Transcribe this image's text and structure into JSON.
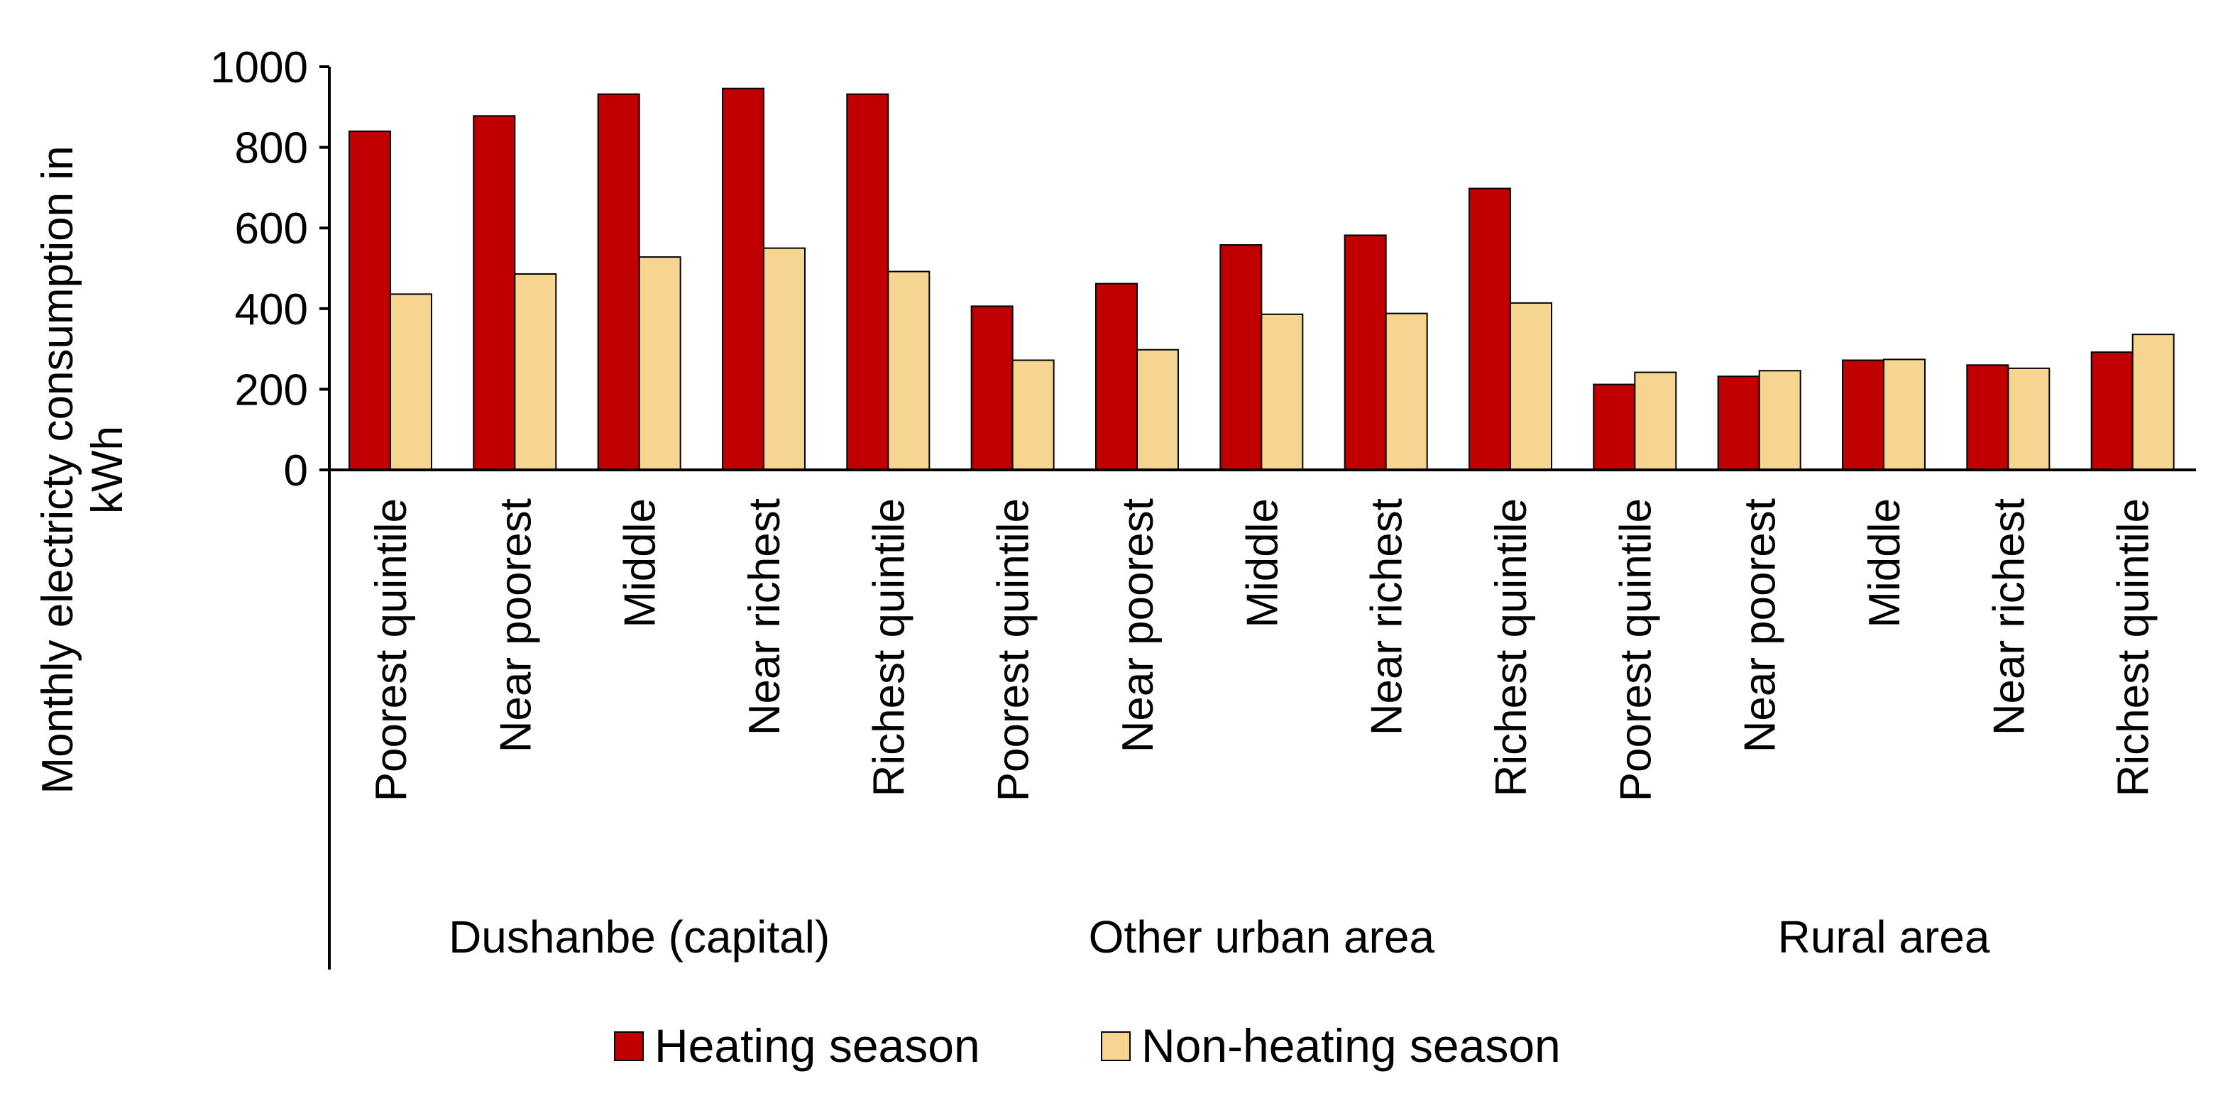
{
  "chart_data": {
    "type": "bar",
    "title": "",
    "xlabel": "",
    "ylabel": "Monthly electricty consumption in kWh",
    "ylabel_lines": [
      "Monthly electricty consumption in",
      "kWh"
    ],
    "ylim": [
      0,
      1000
    ],
    "yticks": [
      0,
      200,
      400,
      600,
      800,
      1000
    ],
    "grid": false,
    "legend_position": "bottom",
    "groups": [
      {
        "name": "Dushanbe (capital)",
        "categories": [
          "Poorest quintile",
          "Near poorest",
          "Middle",
          "Near richest",
          "Richest quintile"
        ]
      },
      {
        "name": "Other urban area",
        "categories": [
          "Poorest quintile",
          "Near poorest",
          "Middle",
          "Near richest",
          "Richest quintile"
        ]
      },
      {
        "name": "Rural area",
        "categories": [
          "Poorest quintile",
          "Near poorest",
          "Middle",
          "Near richest",
          "Richest quintile"
        ]
      }
    ],
    "series": [
      {
        "name": "Heating season",
        "color": "#c00000",
        "values": [
          840,
          878,
          932,
          946,
          932,
          406,
          462,
          558,
          582,
          698,
          212,
          232,
          272,
          260,
          292
        ]
      },
      {
        "name": "Non-heating season",
        "color": "#f5d590",
        "values": [
          436,
          486,
          528,
          550,
          492,
          272,
          298,
          386,
          388,
          414,
          242,
          246,
          274,
          252,
          336
        ]
      }
    ]
  }
}
